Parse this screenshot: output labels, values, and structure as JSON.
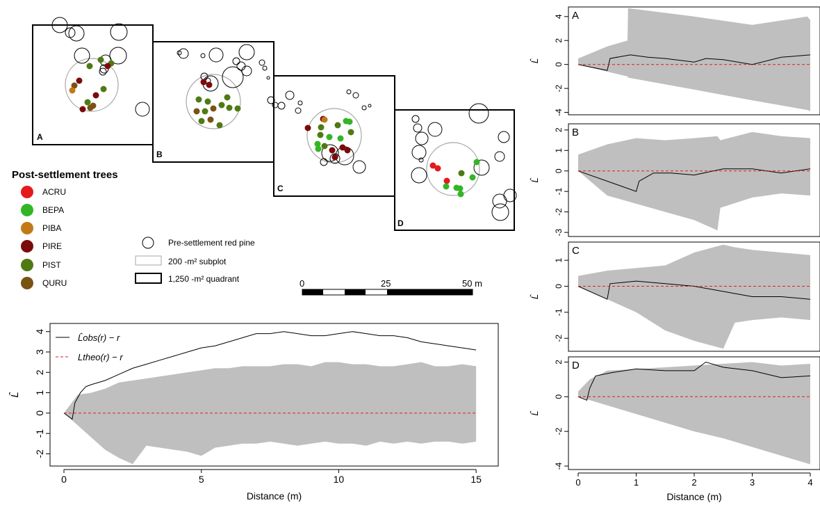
{
  "colors": {
    "ACRU": "#e41a1c",
    "BEPA": "#33b526",
    "PIBA": "#c07a17",
    "PIRE": "#7a0b0b",
    "PIST": "#4f7a13",
    "QURU": "#7a5212",
    "envelope": "#bfbfbf",
    "theo": "#e41a1c",
    "obs": "#000000",
    "subplot": "#a6a6a6"
  },
  "map": {
    "quadrant_labels": [
      "A",
      "B",
      "C",
      "D"
    ],
    "legend": {
      "title": "Post-settlement trees",
      "species": [
        "ACRU",
        "BEPA",
        "PIBA",
        "PIRE",
        "PIST",
        "QURU"
      ],
      "symbols": [
        "Pre-settlement red pine",
        "200 -m² subplot",
        "1,250 -m² quadrant"
      ]
    },
    "scalebar": {
      "ticks": [
        "0",
        "25",
        "50 m"
      ]
    }
  },
  "chart_data": [
    {
      "id": "main",
      "type": "line",
      "xlabel": "Distance (m)",
      "ylabel": "L̂",
      "xlim": [
        0,
        15.3
      ],
      "ylim": [
        -2.6,
        4.4
      ],
      "xticks": [
        0,
        5,
        10,
        15
      ],
      "yticks": [
        -2,
        -1,
        0,
        1,
        2,
        3,
        4
      ],
      "legend": {
        "position": "top-left",
        "entries": [
          "L̂obs(r) − r",
          "Ltheo(r) − r"
        ]
      },
      "series": [
        {
          "name": "L̂obs(r) − r",
          "style": "solid",
          "x": [
            0,
            0.3,
            0.4,
            0.6,
            0.8,
            1.0,
            1.5,
            2.0,
            2.5,
            3.0,
            3.5,
            4.0,
            4.5,
            5.0,
            5.5,
            6.0,
            6.5,
            7.0,
            7.5,
            8.0,
            8.5,
            9.0,
            9.5,
            10.0,
            10.5,
            11.0,
            11.5,
            12.0,
            12.5,
            13.0,
            13.5,
            14.0,
            14.5,
            15.0
          ],
          "y": [
            0,
            -0.3,
            0.5,
            1.0,
            1.3,
            1.4,
            1.6,
            1.9,
            2.2,
            2.4,
            2.6,
            2.8,
            3.0,
            3.2,
            3.3,
            3.5,
            3.7,
            3.9,
            3.9,
            4.0,
            3.9,
            3.8,
            3.8,
            3.9,
            4.0,
            3.9,
            3.8,
            3.8,
            3.7,
            3.5,
            3.4,
            3.3,
            3.2,
            3.1
          ]
        },
        {
          "name": "Ltheo(r) − r",
          "style": "dashed",
          "x": [
            0,
            15
          ],
          "y": [
            0,
            0
          ]
        }
      ],
      "envelope": {
        "x": [
          0,
          0.5,
          1.0,
          1.5,
          2.0,
          2.5,
          3.0,
          3.5,
          4.0,
          4.5,
          5.0,
          5.5,
          6.0,
          6.5,
          7.0,
          7.5,
          8.0,
          8.5,
          9.0,
          9.5,
          10.0,
          10.5,
          11.0,
          11.5,
          12.0,
          12.5,
          13.0,
          13.5,
          14.0,
          14.5,
          15.0
        ],
        "upper": [
          0,
          0.9,
          1.0,
          1.2,
          1.5,
          1.6,
          1.7,
          1.8,
          1.9,
          2.0,
          2.1,
          2.2,
          2.2,
          2.3,
          2.3,
          2.3,
          2.4,
          2.4,
          2.3,
          2.5,
          2.5,
          2.4,
          2.4,
          2.3,
          2.3,
          2.4,
          2.5,
          2.3,
          2.3,
          2.4,
          2.3
        ],
        "lower": [
          0,
          -0.6,
          -1.2,
          -1.8,
          -2.2,
          -2.5,
          -1.6,
          -1.7,
          -1.8,
          -1.9,
          -2.1,
          -1.7,
          -1.6,
          -1.5,
          -1.5,
          -1.4,
          -1.5,
          -1.6,
          -1.5,
          -1.4,
          -1.5,
          -1.5,
          -1.6,
          -1.4,
          -1.5,
          -1.4,
          -1.5,
          -1.4,
          -1.4,
          -1.5,
          -1.4
        ]
      }
    },
    {
      "id": "A",
      "type": "line",
      "xlim": [
        0,
        4
      ],
      "ylim": [
        -4.2,
        4.8
      ],
      "yticks": [
        -4,
        -2,
        0,
        2,
        4
      ],
      "ylabel": "L̂",
      "series": [
        {
          "style": "solid",
          "x": [
            0,
            0.5,
            0.55,
            0.9,
            1.2,
            1.5,
            2.0,
            2.2,
            2.5,
            3.0,
            3.5,
            4.0
          ],
          "y": [
            0,
            -0.5,
            0.5,
            0.8,
            0.6,
            0.5,
            0.2,
            0.5,
            0.4,
            0.0,
            0.6,
            0.8
          ]
        },
        {
          "style": "dashed",
          "x": [
            0,
            4
          ],
          "y": [
            0,
            0
          ]
        }
      ],
      "envelope": {
        "x": [
          0,
          0.5,
          0.85,
          0.86,
          2.0,
          3.0,
          3.95,
          4.0
        ],
        "upper": [
          0.5,
          1.5,
          2.0,
          4.7,
          4.0,
          3.3,
          4.0,
          3.7
        ],
        "lower": [
          0,
          -0.6,
          -1.0,
          -1.1,
          -2.1,
          -3.0,
          -3.8,
          -3.9
        ]
      }
    },
    {
      "id": "B",
      "type": "line",
      "xlim": [
        0,
        4
      ],
      "ylim": [
        -3.2,
        2.3
      ],
      "yticks": [
        -3,
        -2,
        -1,
        0,
        1,
        2
      ],
      "ylabel": "L̂",
      "series": [
        {
          "style": "solid",
          "x": [
            0,
            1.0,
            1.05,
            1.3,
            1.6,
            2.0,
            2.5,
            3.0,
            3.5,
            4.0
          ],
          "y": [
            0,
            -1.0,
            -0.5,
            -0.1,
            -0.1,
            -0.2,
            0.1,
            0.1,
            -0.1,
            0.1
          ]
        },
        {
          "style": "dashed",
          "x": [
            0,
            4
          ],
          "y": [
            0,
            0
          ]
        }
      ],
      "envelope": {
        "x": [
          0,
          0.5,
          1.0,
          1.5,
          2.0,
          2.4,
          2.45,
          3.0,
          3.5,
          4.0
        ],
        "upper": [
          0.8,
          1.3,
          1.6,
          1.5,
          1.6,
          1.7,
          1.5,
          1.9,
          1.7,
          1.6
        ],
        "lower": [
          0,
          -1.2,
          -1.6,
          -2.0,
          -2.4,
          -2.9,
          -1.8,
          -1.3,
          -1.1,
          -1.2
        ]
      }
    },
    {
      "id": "C",
      "type": "line",
      "xlim": [
        0,
        4
      ],
      "ylim": [
        -2.5,
        1.7
      ],
      "yticks": [
        -2,
        -1,
        0,
        1
      ],
      "ylabel": "L̂",
      "series": [
        {
          "style": "solid",
          "x": [
            0,
            0.5,
            0.55,
            1.0,
            1.5,
            2.0,
            2.5,
            3.0,
            3.5,
            4.0
          ],
          "y": [
            0,
            -0.5,
            0.1,
            0.2,
            0.1,
            0.0,
            -0.2,
            -0.4,
            -0.4,
            -0.5
          ]
        },
        {
          "style": "dashed",
          "x": [
            0,
            4
          ],
          "y": [
            0,
            0
          ]
        }
      ],
      "envelope": {
        "x": [
          0,
          0.5,
          1.0,
          1.5,
          2.0,
          2.5,
          2.7,
          3.0,
          3.5,
          4.0
        ],
        "upper": [
          0.4,
          0.6,
          0.7,
          0.8,
          1.3,
          1.6,
          1.5,
          1.4,
          1.3,
          1.2
        ],
        "lower": [
          0,
          -0.5,
          -1.0,
          -1.7,
          -2.1,
          -2.4,
          -1.4,
          -1.3,
          -1.2,
          -1.3
        ]
      }
    },
    {
      "id": "D",
      "type": "line",
      "xlim": [
        0,
        4
      ],
      "ylim": [
        -4.2,
        2.3
      ],
      "yticks": [
        -4,
        -2,
        0,
        2
      ],
      "ylabel": "L̂",
      "series": [
        {
          "style": "solid",
          "x": [
            0,
            0.15,
            0.2,
            0.3,
            0.6,
            1.0,
            1.5,
            2.0,
            2.2,
            2.5,
            3.0,
            3.5,
            4.0
          ],
          "y": [
            0,
            -0.2,
            0.5,
            1.2,
            1.4,
            1.6,
            1.5,
            1.5,
            2.0,
            1.7,
            1.5,
            1.1,
            1.2
          ]
        },
        {
          "style": "dashed",
          "x": [
            0,
            4
          ],
          "y": [
            0,
            0
          ]
        }
      ],
      "envelope": {
        "x": [
          0,
          0.2,
          0.5,
          1.0,
          1.5,
          2.0,
          2.5,
          3.0,
          3.5,
          4.0
        ],
        "upper": [
          0.3,
          1.0,
          1.5,
          1.6,
          1.7,
          1.8,
          1.9,
          2.0,
          1.8,
          1.9
        ],
        "lower": [
          0,
          -0.2,
          -0.5,
          -1.0,
          -1.5,
          -2.0,
          -2.4,
          -2.9,
          -3.4,
          -3.9
        ]
      }
    }
  ]
}
